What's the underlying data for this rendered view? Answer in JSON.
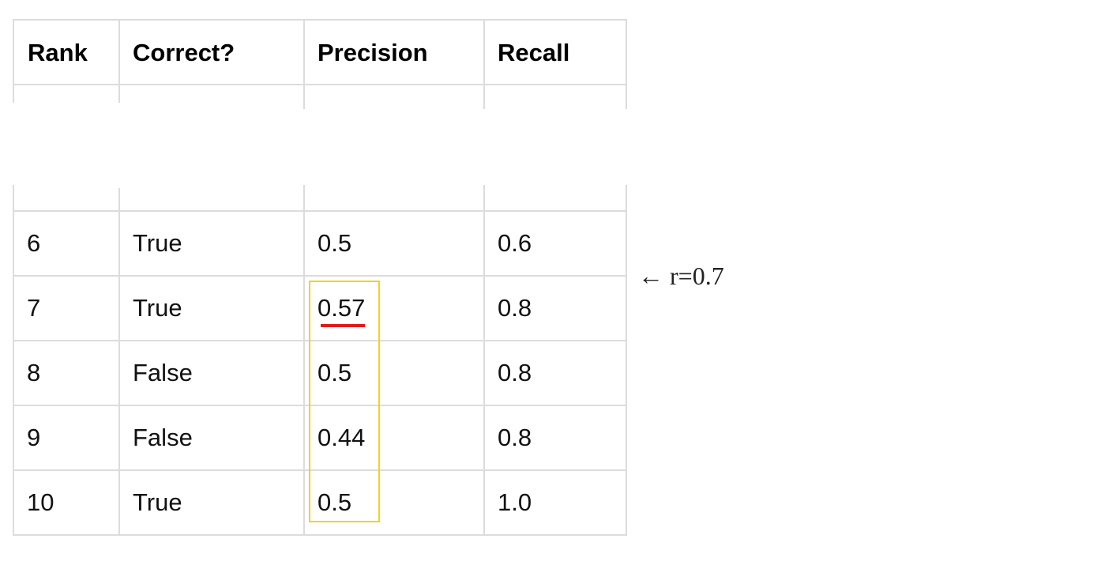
{
  "table": {
    "headers": [
      "Rank",
      "Correct?",
      "Precision",
      "Recall"
    ],
    "rows": [
      {
        "rank": "6",
        "correct": "True",
        "precision": "0.5",
        "recall": "0.6"
      },
      {
        "rank": "7",
        "correct": "True",
        "precision": "0.57",
        "recall": "0.8"
      },
      {
        "rank": "8",
        "correct": "False",
        "precision": "0.5",
        "recall": "0.8"
      },
      {
        "rank": "9",
        "correct": "False",
        "precision": "0.44",
        "recall": "0.8"
      },
      {
        "rank": "10",
        "correct": "True",
        "precision": "0.5",
        "recall": "1.0"
      }
    ]
  },
  "annotation": {
    "text": "← r=0.7"
  },
  "colors": {
    "highlight_box": "#f2d31b",
    "underline": "#e01b1b",
    "grid": "#dcdcdc"
  }
}
